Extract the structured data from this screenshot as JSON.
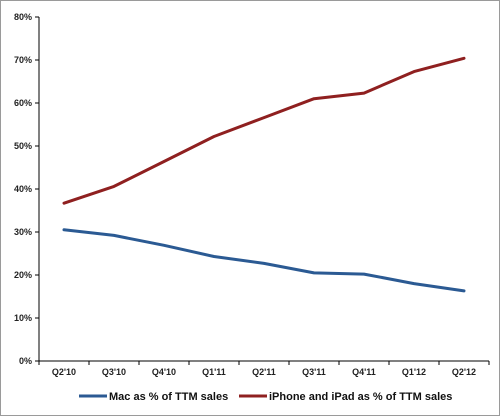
{
  "chart_data": {
    "type": "line",
    "categories": [
      "Q2'10",
      "Q3'10",
      "Q4'10",
      "Q1'11",
      "Q2'11",
      "Q3'11",
      "Q4'11",
      "Q1'12",
      "Q2'12"
    ],
    "ylim": [
      0,
      80
    ],
    "yticks": [
      0,
      10,
      20,
      30,
      40,
      50,
      60,
      70,
      80
    ],
    "ytick_labels": [
      "0%",
      "10%",
      "20%",
      "30%",
      "40%",
      "50%",
      "60%",
      "70%",
      "80%"
    ],
    "grid": false,
    "legend_position": "bottom",
    "series": [
      {
        "name": "Mac as % of TTM sales",
        "color": "#2b5a93",
        "values": [
          30.5,
          29.2,
          26.9,
          24.3,
          22.7,
          20.5,
          20.2,
          18.0,
          16.3
        ]
      },
      {
        "name": "iPhone and iPad as % of TTM sales",
        "color": "#8f2020",
        "values": [
          36.7,
          40.6,
          46.4,
          52.2,
          56.6,
          61.0,
          62.3,
          67.3,
          70.4
        ]
      }
    ]
  }
}
